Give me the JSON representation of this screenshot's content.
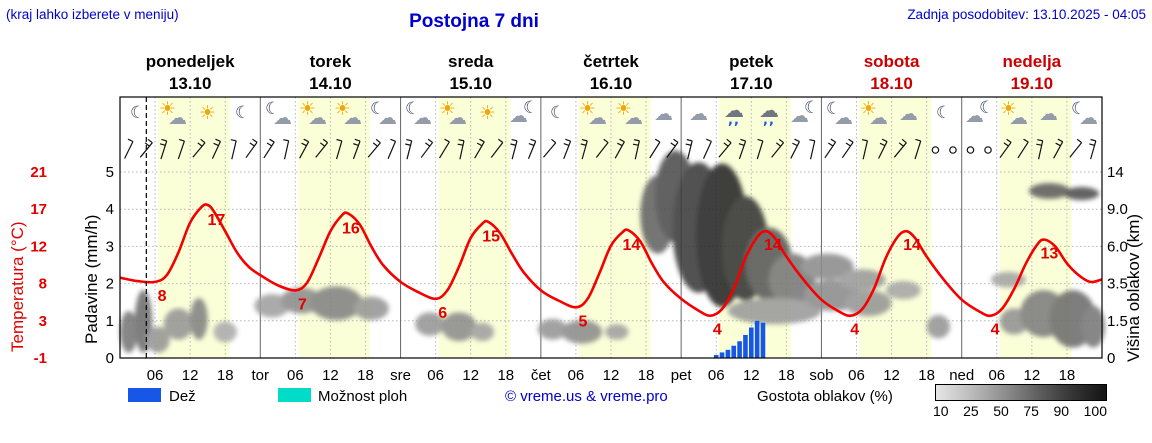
{
  "header": {
    "menu_hint": "(kraj lahko izberete v meniju)",
    "title": "Postojna 7 dni",
    "last_update": "Zadnja posodobitev: 13.10.2025 - 04:05"
  },
  "axes": {
    "temp_label": "Temperatura (°C)",
    "temp_ticks": [
      "21",
      "17",
      "12",
      "8",
      "3",
      "-1"
    ],
    "precip_label": "Padavine (mm/h)",
    "precip_ticks": [
      "5",
      "4",
      "3",
      "2",
      "1",
      "0"
    ],
    "cloud_label": "Višina oblakov (km)",
    "cloud_ticks": [
      "14",
      "9.0",
      "6.0",
      "3.5",
      "1.5",
      "0"
    ]
  },
  "days": [
    {
      "name": "ponedeljek",
      "date": "13.10",
      "color": "#000000"
    },
    {
      "name": "torek",
      "date": "14.10",
      "color": "#000000",
      "abbr": "tor"
    },
    {
      "name": "sreda",
      "date": "15.10",
      "color": "#000000",
      "abbr": "sre"
    },
    {
      "name": "četrtek",
      "date": "16.10",
      "color": "#000000",
      "abbr": "čet"
    },
    {
      "name": "petek",
      "date": "17.10",
      "color": "#000000",
      "abbr": "pet"
    },
    {
      "name": "sobota",
      "date": "18.10",
      "color": "#cc0000",
      "abbr": "sob"
    },
    {
      "name": "nedelja",
      "date": "19.10",
      "color": "#cc0000",
      "abbr": "ned"
    }
  ],
  "legend": {
    "rain_label": "Dež",
    "showers_label": "Možnost ploh",
    "copyright": "© vreme.us & vreme.pro",
    "cloud_density_label": "Gostota oblakov (%)",
    "cloud_density_ticks": [
      "10",
      "25",
      "50",
      "75",
      "90",
      "100"
    ]
  },
  "colors": {
    "accent_blue": "#0000cc",
    "red": "#e30000",
    "day_band": "#faffd8",
    "rain": "#1757e8",
    "showers": "#00dcc8",
    "grid": "#b5b5b5",
    "day_line": "#666666"
  },
  "chart_data": {
    "type": "line",
    "x_range_hours": [
      0,
      168
    ],
    "x_hour_ticks": [
      "06",
      "12",
      "18"
    ],
    "now_hour": 4.5,
    "day_band_hours": [
      6.5,
      18.8
    ],
    "temperature": {
      "unit": "°C",
      "axis_range": [
        -1,
        21
      ],
      "points": [
        [
          0,
          8.5
        ],
        [
          3,
          8.1
        ],
        [
          6,
          8.0
        ],
        [
          8,
          8.8
        ],
        [
          10,
          11.5
        ],
        [
          12,
          15
        ],
        [
          14,
          16.9
        ],
        [
          15,
          17.1
        ],
        [
          16,
          16.4
        ],
        [
          18,
          14
        ],
        [
          20,
          11.5
        ],
        [
          22,
          9.8
        ],
        [
          24,
          8.8
        ],
        [
          27,
          7.6
        ],
        [
          30,
          7.0
        ],
        [
          32,
          7.9
        ],
        [
          34,
          10.8
        ],
        [
          36,
          14
        ],
        [
          38,
          15.9
        ],
        [
          39,
          16.1
        ],
        [
          41,
          14.8
        ],
        [
          43,
          12.2
        ],
        [
          45,
          10
        ],
        [
          48,
          8.0
        ],
        [
          51,
          6.8
        ],
        [
          54,
          6.0
        ],
        [
          56,
          7.0
        ],
        [
          58,
          9.8
        ],
        [
          60,
          13.2
        ],
        [
          62,
          14.9
        ],
        [
          63,
          15.1
        ],
        [
          65,
          13.8
        ],
        [
          67,
          11.4
        ],
        [
          69,
          9.2
        ],
        [
          72,
          7.0
        ],
        [
          75,
          5.8
        ],
        [
          78,
          5.0
        ],
        [
          80,
          6.0
        ],
        [
          82,
          9.0
        ],
        [
          84,
          12.3
        ],
        [
          86,
          13.9
        ],
        [
          87,
          14.1
        ],
        [
          89,
          12.8
        ],
        [
          91,
          10.2
        ],
        [
          93,
          8.0
        ],
        [
          96,
          6.0
        ],
        [
          99,
          4.6
        ],
        [
          101,
          4.0
        ],
        [
          103,
          4.8
        ],
        [
          105,
          7.2
        ],
        [
          107,
          10.8
        ],
        [
          109,
          13.3
        ],
        [
          110.5,
          14
        ],
        [
          112,
          13.2
        ],
        [
          114,
          11
        ],
        [
          117,
          8.2
        ],
        [
          120,
          5.9
        ],
        [
          123,
          4.5
        ],
        [
          125,
          4.0
        ],
        [
          127,
          4.8
        ],
        [
          129,
          7.2
        ],
        [
          131,
          10.8
        ],
        [
          133,
          13.3
        ],
        [
          134.5,
          14
        ],
        [
          136,
          13.2
        ],
        [
          138,
          11
        ],
        [
          141,
          8.2
        ],
        [
          144,
          5.9
        ],
        [
          147,
          4.5
        ],
        [
          149,
          4.0
        ],
        [
          151,
          4.9
        ],
        [
          153,
          7.2
        ],
        [
          155,
          10.2
        ],
        [
          157,
          12.5
        ],
        [
          158.2,
          13
        ],
        [
          160,
          12.2
        ],
        [
          162,
          10.2
        ],
        [
          164,
          8.8
        ],
        [
          166,
          8.0
        ],
        [
          168,
          8.3
        ]
      ],
      "labels": [
        [
          "8",
          6,
          8
        ],
        [
          "17",
          15.3,
          17
        ],
        [
          "7",
          30,
          7
        ],
        [
          "16",
          38.3,
          16
        ],
        [
          "6",
          54,
          6
        ],
        [
          "15",
          62.3,
          15
        ],
        [
          "5",
          78,
          5
        ],
        [
          "14",
          86.3,
          14
        ],
        [
          "4",
          101,
          4
        ],
        [
          "14",
          110.5,
          14
        ],
        [
          "4",
          124.5,
          4
        ],
        [
          "14",
          134.3,
          14
        ],
        [
          "4",
          148.5,
          4
        ],
        [
          "13",
          157.8,
          13
        ]
      ]
    },
    "rain": {
      "unit": "mm/h",
      "axis_range": [
        0,
        5
      ],
      "bars": [
        [
          102,
          0.08
        ],
        [
          103,
          0.15
        ],
        [
          104,
          0.22
        ],
        [
          105,
          0.33
        ],
        [
          106,
          0.45
        ],
        [
          107,
          0.62
        ],
        [
          108,
          0.82
        ],
        [
          109,
          1.0
        ],
        [
          110,
          0.95
        ]
      ]
    },
    "cloud_height_axis": {
      "unit": "km",
      "ticks": [
        0,
        1.5,
        3.5,
        6.0,
        9.0,
        14
      ]
    },
    "cloud_blobs": [
      [
        1.5,
        0.1,
        3,
        0.16,
        55
      ],
      [
        4,
        0.14,
        3,
        0.24,
        60
      ],
      [
        6.5,
        0.07,
        4,
        0.1,
        40
      ],
      [
        10,
        0.13,
        5,
        0.12,
        40
      ],
      [
        13.5,
        0.15,
        3,
        0.16,
        50
      ],
      [
        18,
        0.1,
        4,
        0.08,
        30
      ],
      [
        26,
        0.2,
        6,
        0.09,
        35
      ],
      [
        31,
        0.22,
        7,
        0.1,
        45
      ],
      [
        37,
        0.21,
        9,
        0.13,
        50
      ],
      [
        43,
        0.19,
        6,
        0.09,
        40
      ],
      [
        53,
        0.13,
        5,
        0.09,
        40
      ],
      [
        58,
        0.12,
        6,
        0.11,
        45
      ],
      [
        62,
        0.1,
        4,
        0.07,
        35
      ],
      [
        74,
        0.11,
        5,
        0.08,
        40
      ],
      [
        79,
        0.1,
        7,
        0.09,
        45
      ],
      [
        85,
        0.1,
        4,
        0.06,
        35
      ],
      [
        92,
        0.55,
        6,
        0.3,
        65
      ],
      [
        95,
        0.62,
        7,
        0.35,
        75
      ],
      [
        99,
        0.5,
        9,
        0.5,
        85
      ],
      [
        103,
        0.47,
        9,
        0.55,
        95
      ],
      [
        107,
        0.42,
        8,
        0.4,
        88
      ],
      [
        111,
        0.36,
        8,
        0.28,
        70
      ],
      [
        115,
        0.3,
        8,
        0.2,
        55
      ],
      [
        112,
        0.18,
        16,
        0.1,
        38
      ],
      [
        121,
        0.35,
        9,
        0.1,
        45
      ],
      [
        122,
        0.24,
        10,
        0.12,
        45
      ],
      [
        127,
        0.3,
        8,
        0.08,
        38
      ],
      [
        128,
        0.21,
        8,
        0.1,
        40
      ],
      [
        134,
        0.26,
        6,
        0.07,
        32
      ],
      [
        140,
        0.12,
        4,
        0.09,
        40
      ],
      [
        152,
        0.3,
        6,
        0.06,
        33
      ],
      [
        153,
        0.14,
        5,
        0.1,
        42
      ],
      [
        158,
        0.17,
        8,
        0.18,
        52
      ],
      [
        163,
        0.15,
        8,
        0.22,
        60
      ],
      [
        166.5,
        0.12,
        4,
        0.16,
        55
      ],
      [
        159,
        0.64,
        7,
        0.06,
        68
      ],
      [
        164.5,
        0.63,
        6,
        0.05,
        75
      ]
    ],
    "wind": {
      "style": "barbs",
      "interval_hours": 3,
      "first_hour": 1.5,
      "calm_hours": [
        140,
        143,
        146,
        149
      ]
    },
    "icons": [
      "moon",
      "sun-cloud",
      "sun",
      "moon",
      "moon-cloud",
      "sun-cloud",
      "sun-cloud",
      "moon-cloud",
      "moon-cloud",
      "sun-cloud",
      "sun",
      "cloud-moon",
      "moon",
      "sun-cloud",
      "sun-cloud",
      "cloud",
      "cloud",
      "rain",
      "rain",
      "cloud-moon",
      "moon-cloud",
      "sun-cloud",
      "cloud",
      "moon",
      "cloud-moon",
      "sun-cloud",
      "cloud",
      "moon-cloud"
    ]
  }
}
